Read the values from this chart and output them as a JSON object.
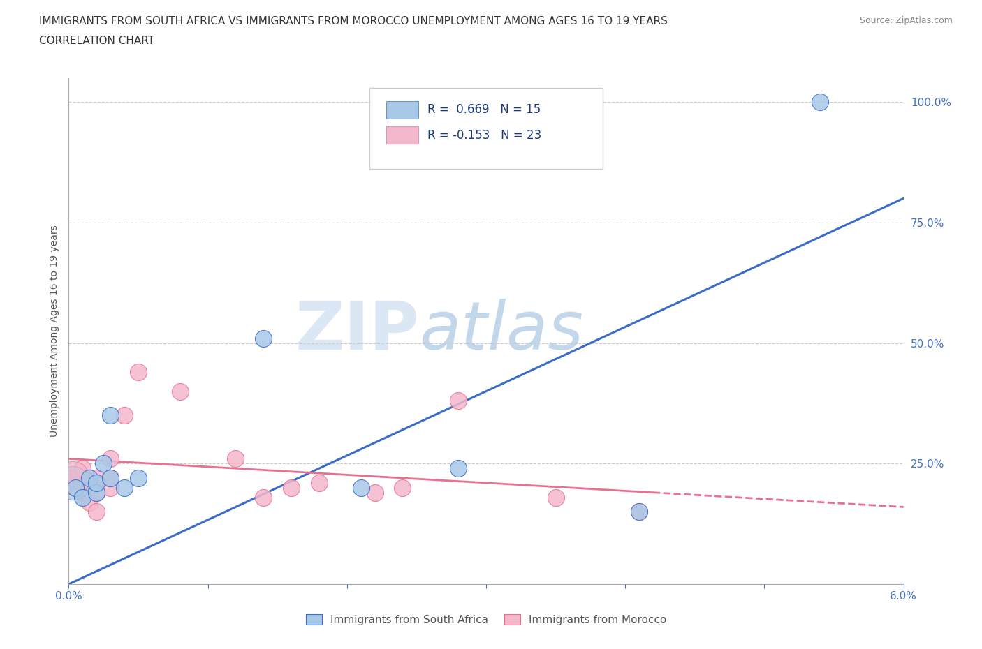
{
  "title_line1": "IMMIGRANTS FROM SOUTH AFRICA VS IMMIGRANTS FROM MOROCCO UNEMPLOYMENT AMONG AGES 16 TO 19 YEARS",
  "title_line2": "CORRELATION CHART",
  "source": "Source: ZipAtlas.com",
  "ylabel": "Unemployment Among Ages 16 to 19 years",
  "xlim": [
    0.0,
    0.06
  ],
  "ylim": [
    0.0,
    1.05
  ],
  "xticks": [
    0.0,
    0.01,
    0.02,
    0.03,
    0.04,
    0.05,
    0.06
  ],
  "xtick_labels": [
    "0.0%",
    "",
    "",
    "",
    "",
    "",
    "6.0%"
  ],
  "ytick_positions": [
    0.0,
    0.25,
    0.5,
    0.75,
    1.0
  ],
  "ytick_labels": [
    "",
    "25.0%",
    "50.0%",
    "75.0%",
    "100.0%"
  ],
  "blue_color": "#a8c8e8",
  "pink_color": "#f4b8cc",
  "blue_line_color": "#3a6cc8",
  "pink_line_color": "#e87090",
  "r_blue": 0.669,
  "n_blue": 15,
  "r_pink": -0.153,
  "n_pink": 23,
  "watermark_zip": "ZIP",
  "watermark_atlas": "atlas",
  "legend_blue_label": "Immigrants from South Africa",
  "legend_pink_label": "Immigrants from Morocco",
  "blue_points_x": [
    0.0005,
    0.001,
    0.0015,
    0.002,
    0.002,
    0.0025,
    0.003,
    0.003,
    0.004,
    0.005,
    0.014,
    0.021,
    0.028,
    0.041,
    0.054
  ],
  "blue_points_y": [
    0.2,
    0.18,
    0.22,
    0.19,
    0.21,
    0.25,
    0.35,
    0.22,
    0.2,
    0.22,
    0.51,
    0.2,
    0.24,
    0.15,
    1.0
  ],
  "pink_points_x": [
    0.0003,
    0.0005,
    0.001,
    0.001,
    0.0015,
    0.002,
    0.002,
    0.002,
    0.003,
    0.003,
    0.003,
    0.004,
    0.005,
    0.008,
    0.012,
    0.014,
    0.016,
    0.018,
    0.022,
    0.024,
    0.028,
    0.035,
    0.041
  ],
  "pink_points_y": [
    0.22,
    0.2,
    0.24,
    0.19,
    0.17,
    0.22,
    0.19,
    0.15,
    0.2,
    0.22,
    0.26,
    0.35,
    0.44,
    0.4,
    0.26,
    0.18,
    0.2,
    0.21,
    0.19,
    0.2,
    0.38,
    0.18,
    0.15
  ],
  "bg_color": "#ffffff",
  "grid_color": "#cccccc",
  "blue_line_y0": 0.0,
  "blue_line_y1": 0.8,
  "pink_line_y0": 0.26,
  "pink_line_y1": 0.16
}
